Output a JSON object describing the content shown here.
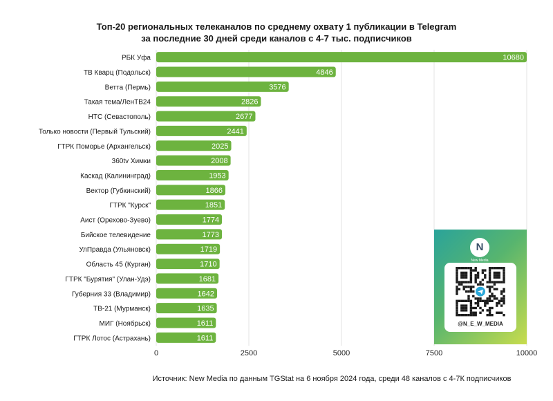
{
  "title": {
    "line1": "Топ-20 региональных телеканалов по среднему охвату 1 публикации в Telegram",
    "line2": "за последние 30 дней среди каналов с 4-7 тыс. подписчиков"
  },
  "source": "Источник: New Media по данным TGStat на 6 ноября 2024 года, среди 48 каналов с 4-7К подписчиков",
  "qr_card": {
    "logo_letter": "N",
    "logo_caption": "New Media",
    "handle": "@N_E_W_MEDIA"
  },
  "colors": {
    "bar": "#6db33f",
    "qr_gradient_start": "#2aa39a",
    "qr_gradient_end": "#c8dc4d"
  },
  "chart_data": {
    "type": "bar",
    "orientation": "horizontal",
    "categories": [
      "РБК Уфа",
      "ТВ Кварц (Подольск)",
      "Ветта (Пермь)",
      "Такая тема/ЛенТВ24",
      "НТС (Севастополь)",
      "Только новости (Первый Тульский)",
      "ГТРК Поморье (Архангельск)",
      "360tv Химки",
      "Каскад (Калининград)",
      "Вектор (Губкинский)",
      "ГТРК \"Курск\"",
      "Аист (Орехово-Зуево)",
      "Бийское телевидение",
      "УлПравда (Ульяновск)",
      "Область 45 (Курган)",
      "ГТРК \"Бурятия\" (Улан-Удэ)",
      "Губерния 33 (Владимир)",
      "ТВ-21 (Мурманск)",
      "МИГ (Ноябрьск)",
      "ГТРК Лотос (Астрахань)"
    ],
    "values": [
      10680,
      4846,
      3576,
      2826,
      2677,
      2441,
      2025,
      2008,
      1953,
      1866,
      1851,
      1774,
      1773,
      1719,
      1710,
      1681,
      1642,
      1635,
      1611,
      1611
    ],
    "xlim": [
      0,
      10000
    ],
    "xticks": [
      0,
      2500,
      5000,
      7500,
      10000
    ],
    "grid": "vertical"
  }
}
